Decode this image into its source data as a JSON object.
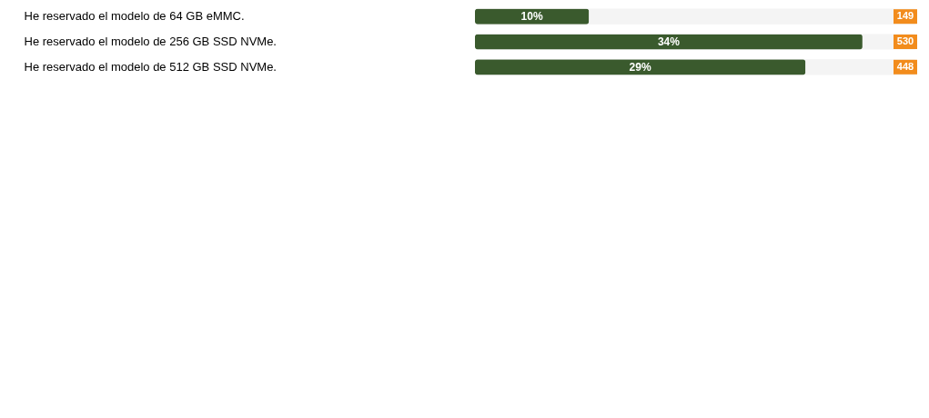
{
  "chart_data": {
    "type": "bar",
    "orientation": "horizontal",
    "categories": [
      "He reservado el modelo de 64 GB eMMC.",
      "He reservado el modelo de 256 GB SSD NVMe.",
      "He reservado el modelo de 512 GB SSD NVMe."
    ],
    "values": [
      10,
      34,
      29
    ],
    "value_labels": [
      "10%",
      "34%",
      "29%"
    ],
    "color": "#3a5a2d",
    "xlim": [
      0,
      38.8
    ],
    "tick_labels": "y",
    "annotations": [
      "149",
      "530",
      "448"
    ]
  }
}
